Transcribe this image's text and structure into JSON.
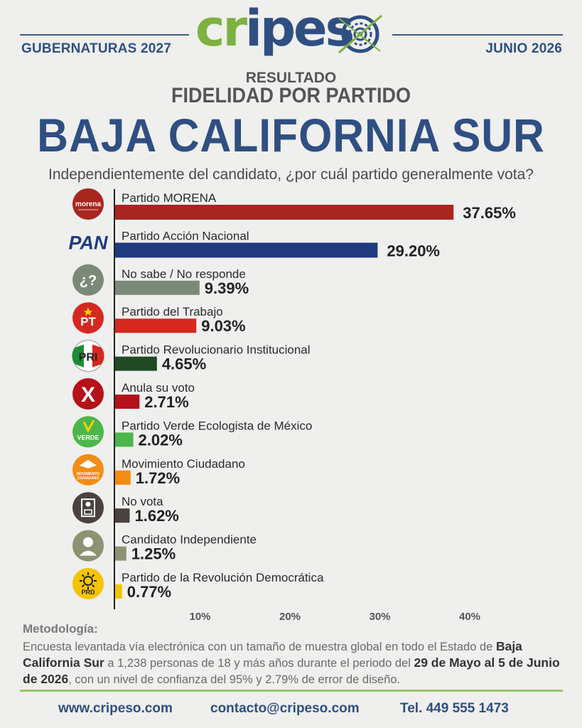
{
  "header": {
    "left_label": "GUBERNATURAS 2027",
    "right_label": "JUNIO 2026",
    "logo_text_green": "cr",
    "logo_text_blue": "ipes",
    "colors": {
      "brand_blue": "#2f4f82",
      "brand_green": "#7db140"
    }
  },
  "titles": {
    "small": "RESULTADO",
    "mid": "FIDELIDAD POR PARTIDO",
    "big": "BAJA CALIFORNIA SUR",
    "question": "Independientemente del candidato, ¿por cuál partido generalmente vota?"
  },
  "chart_data": {
    "type": "bar",
    "orientation": "horizontal",
    "categories": [
      "Partido MORENA",
      "Partido Acción Nacional",
      "No sabe / No responde",
      "Partido del Trabajo",
      "Partido Revolucionario Institucional",
      "Anula su voto",
      "Partido Verde Ecologista de México",
      "Movimiento Ciudadano",
      "No vota",
      "Candidato Independiente",
      "Partido de la Revolución Democrática"
    ],
    "values": [
      37.65,
      29.2,
      9.39,
      9.03,
      4.65,
      2.71,
      2.02,
      1.72,
      1.62,
      1.25,
      0.77
    ],
    "value_labels": [
      "37.65%",
      "29.20%",
      "9.39%",
      "9.03%",
      "4.65%",
      "2.71%",
      "2.02%",
      "1.72%",
      "1.62%",
      "1.25%",
      "0.77%"
    ],
    "colors": [
      "#a8261f",
      "#1f3a7e",
      "#7b8a78",
      "#d6281f",
      "#1f4a24",
      "#b5111a",
      "#4cb64b",
      "#f28c14",
      "#4a4141",
      "#8b9372",
      "#f5c400"
    ],
    "icons": [
      "morena-logo",
      "pan-logo",
      "question-icon",
      "pt-logo",
      "pri-logo",
      "cross-icon",
      "verde-logo",
      "mc-logo",
      "ballot-icon",
      "person-icon",
      "prd-logo"
    ],
    "icon_texts": [
      "morena",
      "PAN",
      "",
      "PT",
      "PRI",
      "",
      "VERDE",
      "MOVIMIENTO CIUDADANO",
      "",
      "",
      "PRD"
    ],
    "xticks": [
      10,
      20,
      30,
      40
    ],
    "xtick_labels": [
      "10%",
      "20%",
      "30%",
      "40%"
    ],
    "xlim": [
      0,
      45
    ],
    "grid": false,
    "legend": "none"
  },
  "methodology": {
    "title": "Metodología:",
    "text1": "Encuesta levantada vía electrónica con un tamaño de muestra global en todo el Estado de ",
    "bold1": "Baja California Sur",
    "text2": " a 1,238 personas de 18 y más años durante el periodo del ",
    "bold2": "29 de Mayo al 5 de Junio de 2026",
    "text3": ", con un nivel de confianza del 95% y 2.79% de error de diseño."
  },
  "footer": {
    "website": "www.cripeso.com",
    "email": "contacto@cripeso.com",
    "phone": "Tel. 449 555 1473"
  }
}
